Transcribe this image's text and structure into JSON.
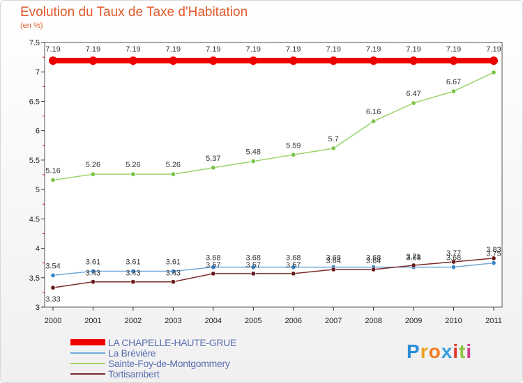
{
  "title": "Evolution du Taux de Taxe d'Habitation",
  "subtitle": "(en %)",
  "brand": {
    "letters": [
      "P",
      "r",
      "o",
      "x",
      "i",
      "t",
      "i"
    ],
    "colors": [
      "#2a8fd8",
      "#e8a020",
      "#f07a20",
      "#3aa0e0",
      "#e03a2a",
      "#8cc43c",
      "#d04090"
    ]
  },
  "chart_data": {
    "type": "line",
    "title": "Evolution du Taux de Taxe d'Habitation",
    "ylabel": "(en %)",
    "xlabel": "",
    "ylim": [
      3,
      7.5
    ],
    "yticks": [
      "3",
      "3.5",
      "4",
      "4.5",
      "5",
      "5.5",
      "6",
      "6.5",
      "7",
      "7.5"
    ],
    "categories": [
      "2000",
      "2001",
      "2002",
      "2003",
      "2004",
      "2005",
      "2006",
      "2007",
      "2008",
      "2009",
      "2010",
      "2011"
    ],
    "series": [
      {
        "name": "LA CHAPELLE-HAUTE-GRUE",
        "color": "#ee0000",
        "width": 8,
        "values": [
          7.19,
          7.19,
          7.19,
          7.19,
          7.19,
          7.19,
          7.19,
          7.19,
          7.19,
          7.19,
          7.19,
          7.19
        ],
        "labels": [
          "7.19",
          "7.19",
          "7.19",
          "7.19",
          "7.19",
          "7.19",
          "7.19",
          "7.19",
          "7.19",
          "7.19",
          "7.19",
          "7.19"
        ]
      },
      {
        "name": "La Brévière",
        "color": "#6fa8d8",
        "width": 1.5,
        "values": [
          3.54,
          3.61,
          3.61,
          3.61,
          3.68,
          3.68,
          3.68,
          3.68,
          3.68,
          3.68,
          3.68,
          3.75
        ],
        "labels": [
          "3.54",
          "3.61",
          "3.61",
          "3.61",
          "3.68",
          "3.68",
          "3.68",
          "3.68",
          "3.68",
          "3.68",
          "3.68",
          "3.75"
        ]
      },
      {
        "name": "Sainte-Foy-de-Montgommery",
        "color": "#9ad46a",
        "width": 1.5,
        "values": [
          5.16,
          5.26,
          5.26,
          5.26,
          5.37,
          5.48,
          5.59,
          5.7,
          6.16,
          6.47,
          6.67,
          6.99
        ],
        "labels": [
          "5.16",
          "5.26",
          "5.26",
          "5.26",
          "5.37",
          "5.48",
          "5.59",
          "5.7",
          "6.16",
          "6.47",
          "6.67",
          ""
        ]
      },
      {
        "name": "Tortisambert",
        "color": "#7a2a2a",
        "width": 1.5,
        "values": [
          3.33,
          3.43,
          3.43,
          3.43,
          3.57,
          3.57,
          3.57,
          3.64,
          3.64,
          3.71,
          3.77,
          3.83
        ],
        "labels": [
          "3.33",
          "3.43",
          "3.43",
          "3.43",
          "3.57",
          "3.57",
          "3.57",
          "3.64",
          "3.64",
          "3.71",
          "3.77",
          "3.83"
        ]
      }
    ]
  }
}
